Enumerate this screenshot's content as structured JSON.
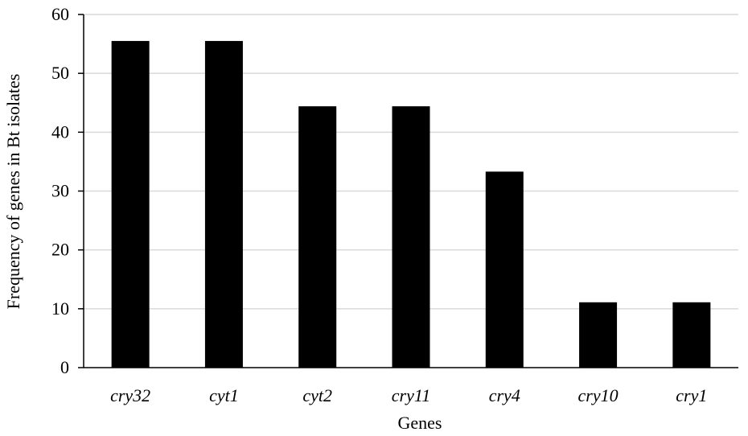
{
  "chart_data": {
    "type": "bar",
    "categories": [
      "cry32",
      "cyt1",
      "cyt2",
      "cry11",
      "cry4",
      "cry10",
      "cry1"
    ],
    "values": [
      55.5,
      55.5,
      44.4,
      44.4,
      33.3,
      11.1,
      11.1
    ],
    "xlabel": "Genes",
    "ylabel": "Frequency of genes in Bt isolates",
    "ylim": [
      0,
      60
    ],
    "yticks": [
      "0",
      "10",
      "20",
      "30",
      "40",
      "50",
      "60"
    ],
    "grid": true,
    "bar_color": "#000000"
  }
}
